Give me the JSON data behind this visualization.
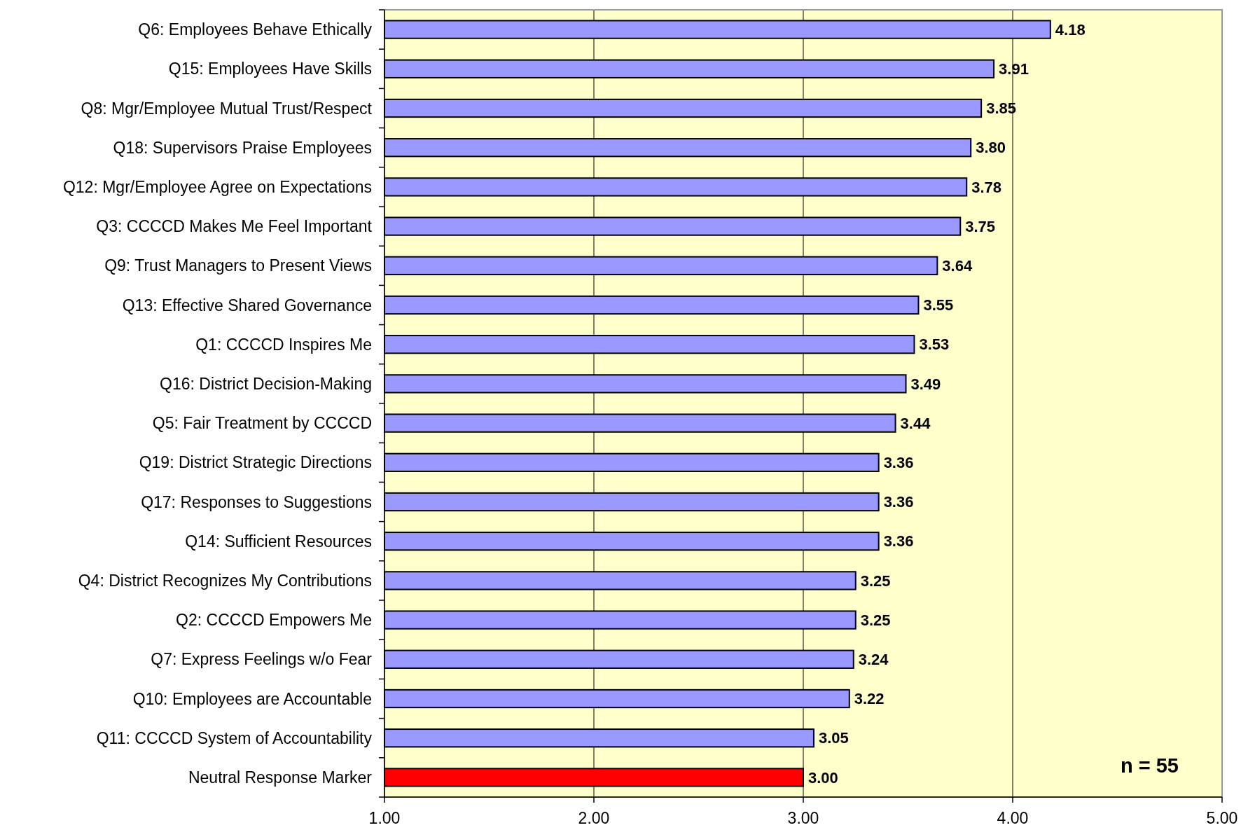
{
  "chart_data": {
    "type": "bar",
    "orientation": "horizontal",
    "categories": [
      "Q6: Employees Behave Ethically",
      "Q15: Employees Have Skills",
      "Q8: Mgr/Employee Mutual Trust/Respect",
      "Q18: Supervisors Praise Employees",
      "Q12: Mgr/Employee Agree on Expectations",
      "Q3: CCCCD Makes Me Feel Important",
      "Q9: Trust Managers to Present Views",
      "Q13: Effective Shared Governance",
      "Q1: CCCCD Inspires Me",
      "Q16: District Decision-Making",
      "Q5: Fair Treatment by CCCCD",
      "Q19: District Strategic Directions",
      "Q17: Responses to Suggestions",
      "Q14: Sufficient Resources",
      "Q4: District Recognizes My Contributions",
      "Q2: CCCCD Empowers Me",
      "Q7: Express Feelings w/o Fear",
      "Q10: Employees are Accountable",
      "Q11: CCCCD System of Accountability",
      "Neutral Response Marker"
    ],
    "values": [
      4.18,
      3.91,
      3.85,
      3.8,
      3.78,
      3.75,
      3.64,
      3.55,
      3.53,
      3.49,
      3.44,
      3.36,
      3.36,
      3.36,
      3.25,
      3.25,
      3.24,
      3.22,
      3.05,
      3.0
    ],
    "value_labels": [
      "4.18",
      "3.91",
      "3.85",
      "3.80",
      "3.78",
      "3.75",
      "3.64",
      "3.55",
      "3.53",
      "3.49",
      "3.44",
      "3.36",
      "3.36",
      "3.36",
      "3.25",
      "3.25",
      "3.24",
      "3.22",
      "3.05",
      "3.00"
    ],
    "colors": [
      "#9999ff",
      "#9999ff",
      "#9999ff",
      "#9999ff",
      "#9999ff",
      "#9999ff",
      "#9999ff",
      "#9999ff",
      "#9999ff",
      "#9999ff",
      "#9999ff",
      "#9999ff",
      "#9999ff",
      "#9999ff",
      "#9999ff",
      "#9999ff",
      "#9999ff",
      "#9999ff",
      "#9999ff",
      "#ff0000"
    ],
    "xlim": [
      1,
      5
    ],
    "xticks": [
      {
        "value": 1,
        "label": "1.00"
      },
      {
        "value": 2,
        "label": "2.00"
      },
      {
        "value": 3,
        "label": "3.00"
      },
      {
        "value": 4,
        "label": "4.00"
      },
      {
        "value": 5,
        "label": "5.00"
      }
    ],
    "grid": "x",
    "annotations": [
      "n = 55"
    ]
  }
}
